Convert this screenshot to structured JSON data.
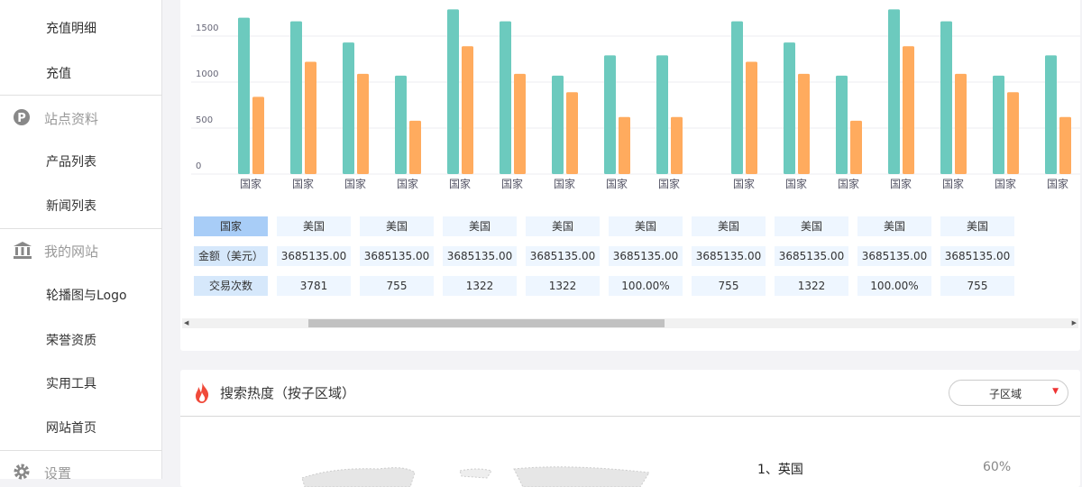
{
  "sidebar": {
    "items": [
      {
        "label": "充值明细"
      },
      {
        "label": "充值"
      },
      {
        "label": "站点资料",
        "header": true,
        "icon": "p-circle-icon"
      },
      {
        "label": "产品列表"
      },
      {
        "label": "新闻列表"
      },
      {
        "label": "我的网站",
        "header": true,
        "icon": "bank-icon"
      },
      {
        "label": "轮播图与Logo"
      },
      {
        "label": "荣誉资质"
      },
      {
        "label": "实用工具"
      },
      {
        "label": "网站首页"
      },
      {
        "label": "设置",
        "header": true,
        "icon": "gear-icon"
      }
    ]
  },
  "chart_data": {
    "type": "bar",
    "categories": [
      "国家",
      "国家",
      "国家",
      "国家",
      "国家",
      "国家",
      "国家",
      "国家",
      "国家",
      "国家",
      "国家",
      "国家",
      "国家",
      "国家",
      "国家",
      "国家"
    ],
    "series": [
      {
        "color": "#6ccabe",
        "values": [
          1700,
          1660,
          1430,
          1070,
          1790,
          1660,
          1070,
          1290,
          1290,
          1660,
          1430,
          1070,
          1790,
          1660,
          1070,
          1290
        ]
      },
      {
        "color": "#ffab5e",
        "values": [
          840,
          1220,
          1090,
          580,
          1390,
          1090,
          890,
          620,
          620,
          1220,
          1090,
          580,
          1390,
          1090,
          890,
          620
        ]
      }
    ],
    "yticks": [
      0,
      500,
      1000,
      1500
    ],
    "ylim": [
      0,
      1800
    ],
    "grid": true
  },
  "table": {
    "row_headers": [
      "国家",
      "金额（美元）",
      "交易次数"
    ],
    "rows": [
      [
        "美国",
        "美国",
        "美国",
        "美国",
        "美国",
        "美国",
        "美国",
        "美国",
        "美国"
      ],
      [
        "3685135.00",
        "3685135.00",
        "3685135.00",
        "3685135.00",
        "3685135.00",
        "3685135.00",
        "3685135.00",
        "3685135.00",
        "3685135.00"
      ],
      [
        "3781",
        "755",
        "1322",
        "1322",
        "100.00%",
        "755",
        "1322",
        "100.00%",
        "755"
      ]
    ]
  },
  "search_heat": {
    "title": "搜索热度（按子区域）",
    "select_value": "子区域",
    "ranking": [
      {
        "label": "1、英国",
        "percent": "60%"
      }
    ]
  }
}
